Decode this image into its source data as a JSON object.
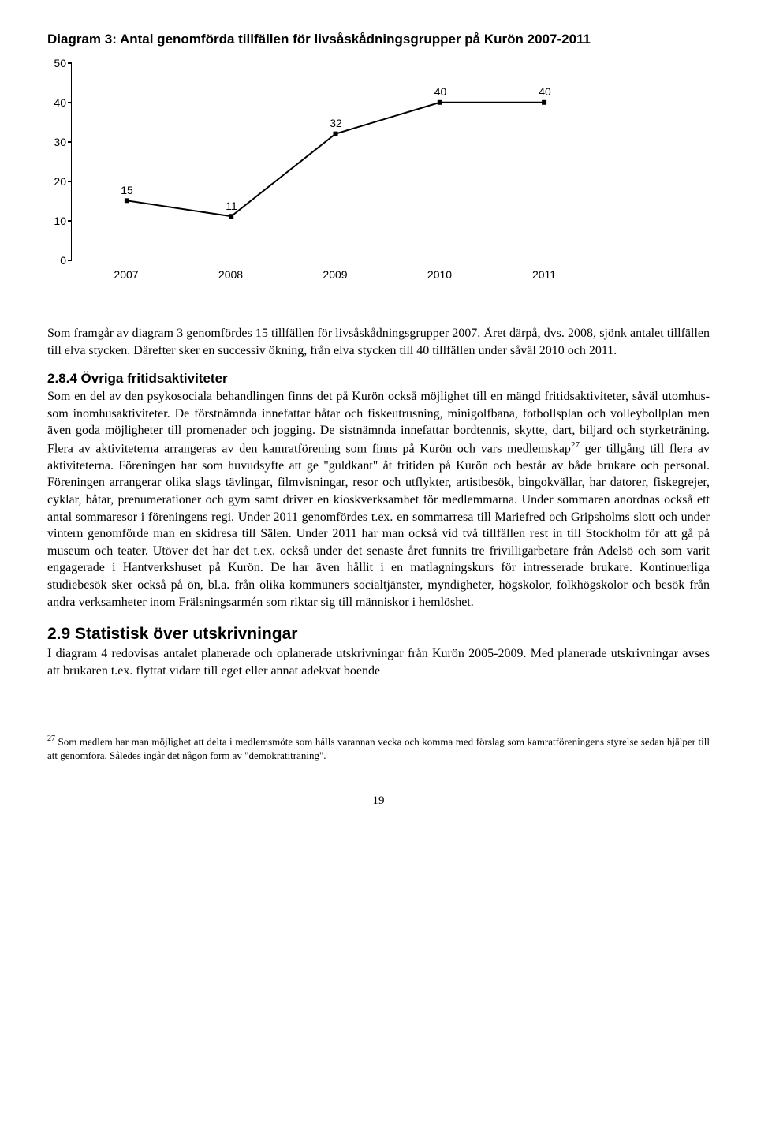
{
  "chart": {
    "title": "Diagram 3: Antal genomförda tillfällen för livsåskådningsgrupper på Kurön 2007-2011",
    "type": "line",
    "categories": [
      "2007",
      "2008",
      "2009",
      "2010",
      "2011"
    ],
    "values": [
      15,
      11,
      32,
      40,
      40
    ],
    "ylim": [
      0,
      50
    ],
    "ytick_step": 10,
    "yticks": [
      0,
      10,
      20,
      30,
      40,
      50
    ],
    "line_color": "#000000",
    "line_width": 2,
    "marker_style": "square",
    "marker_size": 6,
    "marker_color": "#000000",
    "background_color": "#ffffff",
    "axis_color": "#000000",
    "label_fontsize": 14,
    "title_fontsize": 17,
    "title_fontweight": "bold"
  },
  "para1": "Som framgår av diagram 3 genomfördes 15 tillfällen för livsåskådningsgrupper 2007. Året därpå, dvs. 2008, sjönk antalet tillfällen till elva stycken. Därefter sker en successiv ökning, från elva stycken till 40 tillfällen under såväl 2010 och 2011.",
  "section_284_head": "2.8.4 Övriga fritidsaktiviteter",
  "section_284_body": "Som en del av den psykosociala behandlingen finns det på Kurön också möjlighet till en mängd fritidsaktiviteter, såväl utomhus- som inomhusaktiviteter. De förstnämnda innefattar båtar och fiskeutrusning, minigolfbana, fotbollsplan och volleybollplan men även goda möjligheter till promenader och jogging. De sistnämnda innefattar bordtennis, skytte, dart, biljard och styrketräning. Flera av aktiviteterna arrangeras av den kamratförening som finns på Kurön och vars medlemskap",
  "section_284_body_after": " ger tillgång till flera av aktiviteterna. Föreningen har som huvudsyfte att ge \"guldkant\" åt fritiden på Kurön och består av både brukare och personal. Föreningen arrangerar olika slags tävlingar, filmvisningar, resor och utflykter, artistbesök, bingokvällar, har datorer, fiskegrejer, cyklar, båtar, prenumerationer och gym samt driver en kioskverksamhet för medlemmarna. Under sommaren anordnas också ett antal sommaresor i föreningens regi. Under 2011 genomfördes t.ex. en sommarresa till Mariefred och Gripsholms slott och under vintern genomförde man en skidresa till Sälen. Under 2011 har man också vid två tillfällen rest in till Stockholm för att gå på museum och teater. Utöver det har det t.ex. också under det senaste året funnits tre frivilligarbetare från Adelsö och som varit engagerade i Hantverkshuset på Kurön. De har även hållit i en matlagningskurs för intresserade brukare. Kontinuerliga studiebesök sker också på ön, bl.a. från olika kommuners socialtjänster, myndigheter, högskolor, folkhögskolor och besök från andra verksamheter inom Frälsningsarmén som riktar sig till människor i hemlöshet.",
  "footnote_ref": "27",
  "section_29_head": "2.9 Statistisk över utskrivningar",
  "section_29_body": "I diagram 4 redovisas antalet planerade och oplanerade utskrivningar från Kurön 2005-2009. Med planerade utskrivningar avses att brukaren t.ex. flyttat vidare till eget eller annat adekvat boende",
  "footnote": {
    "num": "27",
    "text": " Som medlem har man möjlighet att delta i medlemsmöte som hålls varannan vecka och komma med förslag som kamratföreningens styrelse sedan hjälper till att genomföra. Således ingår det någon form av \"demokratiträning\"."
  },
  "page_number": "19"
}
